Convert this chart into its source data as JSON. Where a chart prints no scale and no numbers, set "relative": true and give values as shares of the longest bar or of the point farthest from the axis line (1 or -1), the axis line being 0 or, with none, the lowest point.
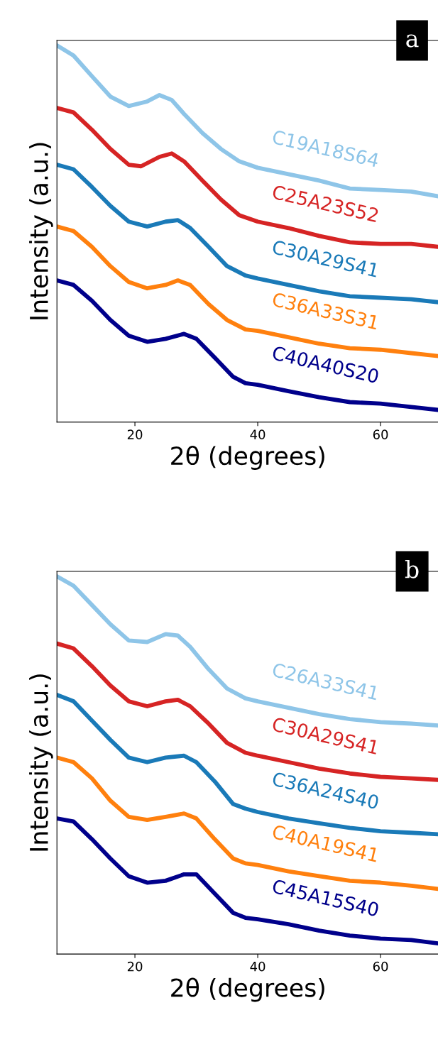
{
  "chart_data": [
    {
      "type": "line",
      "relative": true,
      "xlabel": "2θ (degrees)",
      "ylabel": "Intensity (a.u.)",
      "xlim": [
        7.3,
        69.5
      ],
      "xticks": [
        20,
        40,
        60
      ],
      "tick_labels": "x",
      "annotations": [
        "a"
      ],
      "series": [
        {
          "name": "C19A18S64",
          "color": "#8ec5e8",
          "x": [
            7.3,
            10,
            13,
            16,
            19,
            22,
            24,
            26,
            28,
            31,
            34,
            37,
            40,
            45,
            50,
            55,
            60,
            65,
            69.5
          ],
          "values": [
            1.0,
            0.973,
            0.918,
            0.864,
            0.839,
            0.851,
            0.868,
            0.855,
            0.818,
            0.767,
            0.725,
            0.692,
            0.675,
            0.658,
            0.641,
            0.62,
            0.616,
            0.612,
            0.599
          ]
        },
        {
          "name": "C25A23S52",
          "color": "#d62424",
          "x": [
            7.3,
            10,
            13,
            16,
            19,
            21,
            24,
            26,
            28,
            31,
            34,
            37,
            40,
            45,
            50,
            55,
            60,
            65,
            69.5
          ],
          "values": [
            0.834,
            0.822,
            0.776,
            0.725,
            0.683,
            0.679,
            0.704,
            0.713,
            0.692,
            0.641,
            0.591,
            0.549,
            0.532,
            0.515,
            0.494,
            0.477,
            0.473,
            0.473,
            0.465
          ]
        },
        {
          "name": "C30A29S41",
          "color": "#1a7ab8",
          "x": [
            7.3,
            10,
            13,
            16,
            19,
            22,
            25,
            27,
            29,
            32,
            35,
            38,
            40,
            45,
            50,
            55,
            60,
            65,
            69.5
          ],
          "values": [
            0.683,
            0.671,
            0.624,
            0.574,
            0.532,
            0.519,
            0.532,
            0.536,
            0.515,
            0.465,
            0.414,
            0.389,
            0.381,
            0.364,
            0.347,
            0.334,
            0.33,
            0.326,
            0.318
          ]
        },
        {
          "name": "C36A33S31",
          "color": "#ff800e",
          "x": [
            7.3,
            10,
            13,
            16,
            19,
            22,
            25,
            27,
            29,
            32,
            35,
            38,
            40,
            45,
            50,
            55,
            60,
            65,
            69.5
          ],
          "values": [
            0.519,
            0.507,
            0.465,
            0.414,
            0.372,
            0.355,
            0.364,
            0.376,
            0.364,
            0.313,
            0.271,
            0.246,
            0.242,
            0.225,
            0.208,
            0.196,
            0.192,
            0.183,
            0.175
          ]
        },
        {
          "name": "C40A40S20",
          "color": "#00008b",
          "x": [
            7.3,
            10,
            13,
            16,
            19,
            22,
            25,
            28,
            30,
            33,
            36,
            38,
            40,
            45,
            50,
            55,
            60,
            65,
            69.5
          ],
          "values": [
            0.376,
            0.364,
            0.322,
            0.271,
            0.229,
            0.213,
            0.221,
            0.234,
            0.221,
            0.171,
            0.12,
            0.103,
            0.099,
            0.082,
            0.066,
            0.053,
            0.049,
            0.04,
            0.032
          ]
        }
      ]
    },
    {
      "type": "line",
      "relative": true,
      "xlabel": "2θ (degrees)",
      "ylabel": "Intensity (a.u.)",
      "xlim": [
        7.3,
        69.5
      ],
      "xticks": [
        20,
        40,
        60
      ],
      "tick_labels": "x",
      "annotations": [
        "b"
      ],
      "series": [
        {
          "name": "C26A33S41",
          "color": "#8ec5e8",
          "x": [
            7.3,
            10,
            13,
            16,
            19,
            22,
            25,
            27,
            29,
            32,
            35,
            38,
            40,
            45,
            50,
            55,
            60,
            65,
            69.5
          ],
          "values": [
            1.0,
            0.975,
            0.924,
            0.873,
            0.83,
            0.826,
            0.847,
            0.843,
            0.813,
            0.754,
            0.703,
            0.677,
            0.669,
            0.652,
            0.635,
            0.622,
            0.614,
            0.61,
            0.605
          ]
        },
        {
          "name": "C30A29S41",
          "color": "#d62424",
          "x": [
            7.3,
            10,
            13,
            16,
            19,
            22,
            25,
            27,
            29,
            32,
            35,
            38,
            40,
            45,
            50,
            55,
            60,
            65,
            69.5
          ],
          "values": [
            0.822,
            0.809,
            0.762,
            0.711,
            0.669,
            0.656,
            0.669,
            0.673,
            0.656,
            0.61,
            0.559,
            0.533,
            0.525,
            0.508,
            0.491,
            0.478,
            0.469,
            0.465,
            0.461
          ]
        },
        {
          "name": "C36A24S40",
          "color": "#1a7ab8",
          "x": [
            7.3,
            10,
            13,
            16,
            19,
            22,
            25,
            28,
            30,
            33,
            36,
            38,
            40,
            45,
            50,
            55,
            60,
            65,
            69.5
          ],
          "values": [
            0.686,
            0.669,
            0.618,
            0.567,
            0.52,
            0.508,
            0.52,
            0.525,
            0.508,
            0.457,
            0.397,
            0.385,
            0.376,
            0.359,
            0.346,
            0.334,
            0.325,
            0.321,
            0.317
          ]
        },
        {
          "name": "C40A19S41",
          "color": "#ff800e",
          "x": [
            7.3,
            10,
            13,
            16,
            19,
            22,
            25,
            28,
            30,
            33,
            36,
            38,
            40,
            45,
            50,
            55,
            60,
            65,
            69.5
          ],
          "values": [
            0.52,
            0.508,
            0.465,
            0.406,
            0.363,
            0.355,
            0.363,
            0.372,
            0.359,
            0.304,
            0.253,
            0.24,
            0.236,
            0.219,
            0.206,
            0.194,
            0.189,
            0.181,
            0.172
          ]
        },
        {
          "name": "C45A15S40",
          "color": "#00008b",
          "x": [
            7.3,
            10,
            13,
            16,
            19,
            22,
            25,
            28,
            30,
            33,
            36,
            38,
            40,
            45,
            50,
            55,
            60,
            65,
            69.5
          ],
          "values": [
            0.359,
            0.351,
            0.304,
            0.253,
            0.206,
            0.189,
            0.194,
            0.211,
            0.211,
            0.16,
            0.109,
            0.096,
            0.092,
            0.079,
            0.062,
            0.049,
            0.041,
            0.037,
            0.028
          ]
        }
      ]
    }
  ]
}
